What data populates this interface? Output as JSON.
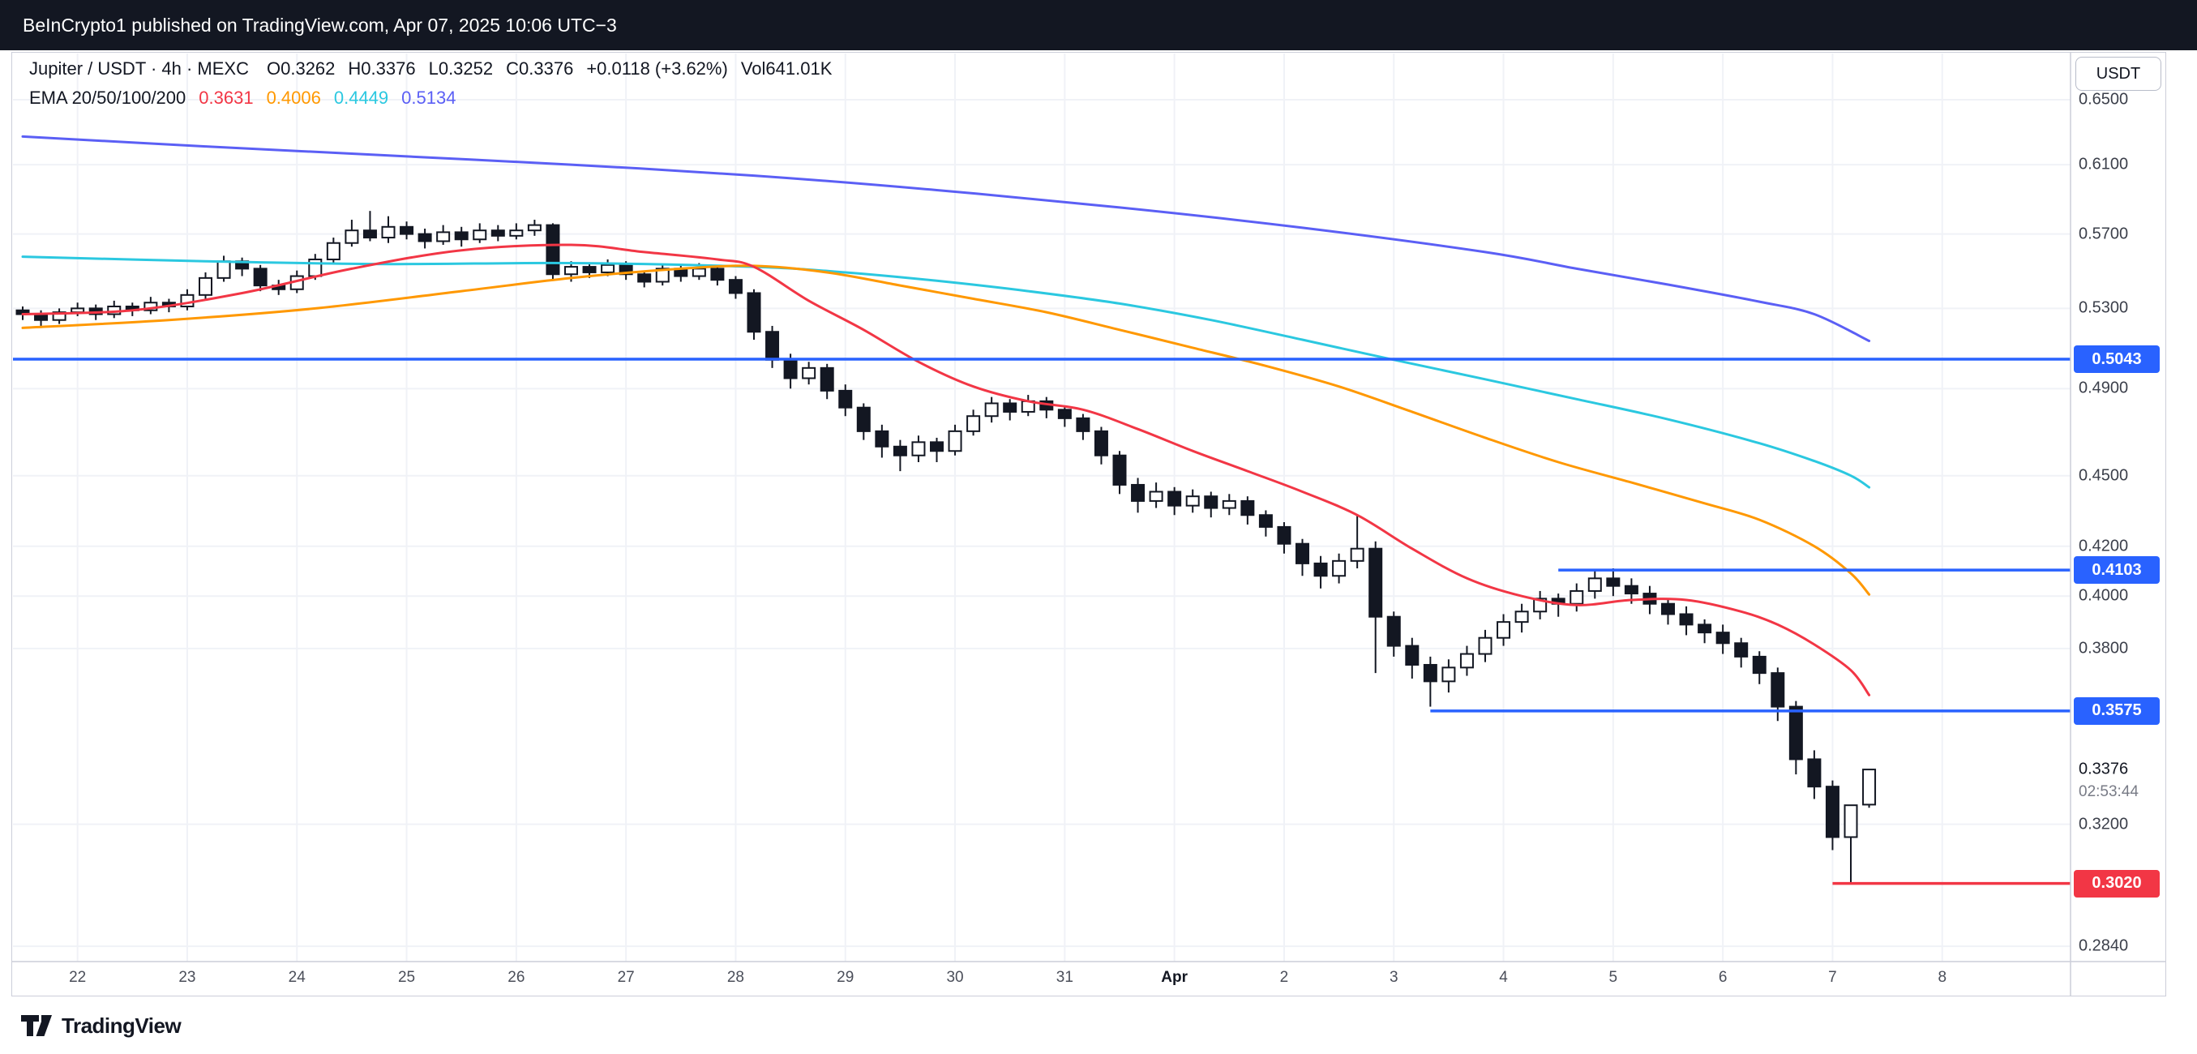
{
  "header": {
    "text": "BeInCrypto1 published on TradingView.com, Apr 07, 2025 10:06 UTC−3"
  },
  "toolbar": {
    "currency_button": "USDT"
  },
  "legend": {
    "symbol": "Jupiter / USDT · 4h · MEXC",
    "ohlc": [
      "O0.3262",
      "H0.3376",
      "L0.3252",
      "C0.3376"
    ],
    "change": "+0.0118 (+3.62%)",
    "volume_label": "Vol",
    "volume_value": "641.01K",
    "ema_label": "EMA 20/50/100/200",
    "ema_values": [
      "0.3631",
      "0.4006",
      "0.4449",
      "0.5134"
    ]
  },
  "footer": {
    "brand": "TradingView"
  },
  "chart_data": {
    "type": "candlestick",
    "symbol": "Jupiter / USDT",
    "interval": "4h",
    "exchange": "MEXC",
    "price_scale": "log",
    "current_price": {
      "text": "0.3376",
      "price": 0.3376,
      "countdown": "02:53:44"
    },
    "candle_up_color": "#ffffff",
    "candle_down_color": "#131722",
    "candle_border_color": "#131722",
    "candles": [
      [
        0.529,
        0.531,
        0.524,
        0.527
      ],
      [
        0.527,
        0.529,
        0.521,
        0.524
      ],
      [
        0.524,
        0.53,
        0.522,
        0.528
      ],
      [
        0.528,
        0.533,
        0.526,
        0.53
      ],
      [
        0.53,
        0.532,
        0.524,
        0.527
      ],
      [
        0.527,
        0.534,
        0.525,
        0.531
      ],
      [
        0.531,
        0.533,
        0.526,
        0.529
      ],
      [
        0.529,
        0.536,
        0.527,
        0.533
      ],
      [
        0.533,
        0.535,
        0.528,
        0.531
      ],
      [
        0.531,
        0.54,
        0.529,
        0.537
      ],
      [
        0.537,
        0.549,
        0.535,
        0.546
      ],
      [
        0.546,
        0.558,
        0.544,
        0.555
      ],
      [
        0.555,
        0.557,
        0.547,
        0.551
      ],
      [
        0.551,
        0.553,
        0.539,
        0.542
      ],
      [
        0.542,
        0.545,
        0.537,
        0.54
      ],
      [
        0.54,
        0.55,
        0.538,
        0.547
      ],
      [
        0.547,
        0.559,
        0.545,
        0.556
      ],
      [
        0.556,
        0.568,
        0.554,
        0.565
      ],
      [
        0.565,
        0.578,
        0.563,
        0.572
      ],
      [
        0.572,
        0.583,
        0.566,
        0.568
      ],
      [
        0.568,
        0.58,
        0.565,
        0.574
      ],
      [
        0.574,
        0.577,
        0.567,
        0.57
      ],
      [
        0.57,
        0.573,
        0.562,
        0.566
      ],
      [
        0.566,
        0.575,
        0.564,
        0.571
      ],
      [
        0.571,
        0.574,
        0.563,
        0.567
      ],
      [
        0.567,
        0.576,
        0.565,
        0.572
      ],
      [
        0.572,
        0.575,
        0.566,
        0.569
      ],
      [
        0.569,
        0.576,
        0.567,
        0.572
      ],
      [
        0.572,
        0.578,
        0.569,
        0.575
      ],
      [
        0.575,
        0.576,
        0.545,
        0.548
      ],
      [
        0.548,
        0.555,
        0.544,
        0.552
      ],
      [
        0.552,
        0.554,
        0.546,
        0.549
      ],
      [
        0.549,
        0.556,
        0.547,
        0.553
      ],
      [
        0.553,
        0.555,
        0.545,
        0.548
      ],
      [
        0.548,
        0.55,
        0.541,
        0.544
      ],
      [
        0.544,
        0.553,
        0.542,
        0.551
      ],
      [
        0.551,
        0.553,
        0.544,
        0.547
      ],
      [
        0.547,
        0.554,
        0.545,
        0.551
      ],
      [
        0.551,
        0.553,
        0.542,
        0.545
      ],
      [
        0.545,
        0.547,
        0.535,
        0.538
      ],
      [
        0.538,
        0.54,
        0.514,
        0.518
      ],
      [
        0.518,
        0.521,
        0.5,
        0.504
      ],
      [
        0.504,
        0.507,
        0.49,
        0.495
      ],
      [
        0.495,
        0.503,
        0.492,
        0.5
      ],
      [
        0.5,
        0.502,
        0.485,
        0.489
      ],
      [
        0.489,
        0.492,
        0.477,
        0.481
      ],
      [
        0.481,
        0.483,
        0.466,
        0.47
      ],
      [
        0.47,
        0.473,
        0.458,
        0.463
      ],
      [
        0.463,
        0.466,
        0.452,
        0.459
      ],
      [
        0.459,
        0.468,
        0.456,
        0.465
      ],
      [
        0.465,
        0.467,
        0.456,
        0.461
      ],
      [
        0.461,
        0.473,
        0.459,
        0.47
      ],
      [
        0.47,
        0.48,
        0.468,
        0.477
      ],
      [
        0.477,
        0.486,
        0.474,
        0.483
      ],
      [
        0.483,
        0.485,
        0.475,
        0.479
      ],
      [
        0.479,
        0.487,
        0.477,
        0.484
      ],
      [
        0.484,
        0.486,
        0.476,
        0.48
      ],
      [
        0.48,
        0.482,
        0.472,
        0.476
      ],
      [
        0.476,
        0.478,
        0.466,
        0.47
      ],
      [
        0.47,
        0.472,
        0.455,
        0.459
      ],
      [
        0.459,
        0.461,
        0.442,
        0.446
      ],
      [
        0.446,
        0.449,
        0.434,
        0.439
      ],
      [
        0.439,
        0.447,
        0.436,
        0.443
      ],
      [
        0.443,
        0.445,
        0.433,
        0.437
      ],
      [
        0.437,
        0.444,
        0.434,
        0.441
      ],
      [
        0.441,
        0.443,
        0.432,
        0.436
      ],
      [
        0.436,
        0.442,
        0.433,
        0.439
      ],
      [
        0.439,
        0.441,
        0.429,
        0.433
      ],
      [
        0.433,
        0.435,
        0.424,
        0.428
      ],
      [
        0.428,
        0.43,
        0.417,
        0.421
      ],
      [
        0.421,
        0.423,
        0.408,
        0.413
      ],
      [
        0.413,
        0.416,
        0.403,
        0.408
      ],
      [
        0.408,
        0.417,
        0.405,
        0.414
      ],
      [
        0.414,
        0.433,
        0.411,
        0.419
      ],
      [
        0.419,
        0.422,
        0.371,
        0.392
      ],
      [
        0.392,
        0.394,
        0.377,
        0.381
      ],
      [
        0.381,
        0.384,
        0.369,
        0.374
      ],
      [
        0.374,
        0.377,
        0.359,
        0.368
      ],
      [
        0.368,
        0.376,
        0.364,
        0.373
      ],
      [
        0.373,
        0.381,
        0.37,
        0.378
      ],
      [
        0.378,
        0.387,
        0.375,
        0.384
      ],
      [
        0.384,
        0.393,
        0.381,
        0.39
      ],
      [
        0.39,
        0.397,
        0.386,
        0.394
      ],
      [
        0.394,
        0.402,
        0.391,
        0.399
      ],
      [
        0.399,
        0.401,
        0.392,
        0.397
      ],
      [
        0.397,
        0.405,
        0.394,
        0.402
      ],
      [
        0.402,
        0.41,
        0.399,
        0.407
      ],
      [
        0.407,
        0.411,
        0.4,
        0.404
      ],
      [
        0.404,
        0.407,
        0.397,
        0.401
      ],
      [
        0.401,
        0.404,
        0.393,
        0.397
      ],
      [
        0.397,
        0.399,
        0.389,
        0.393
      ],
      [
        0.393,
        0.396,
        0.385,
        0.389
      ],
      [
        0.389,
        0.391,
        0.382,
        0.386
      ],
      [
        0.386,
        0.389,
        0.378,
        0.382
      ],
      [
        0.382,
        0.384,
        0.373,
        0.377
      ],
      [
        0.377,
        0.379,
        0.367,
        0.371
      ],
      [
        0.371,
        0.373,
        0.354,
        0.359
      ],
      [
        0.359,
        0.361,
        0.336,
        0.341
      ],
      [
        0.341,
        0.344,
        0.328,
        0.332
      ],
      [
        0.332,
        0.334,
        0.312,
        0.316
      ],
      [
        0.316,
        0.32,
        0.302,
        0.326
      ],
      [
        0.3262,
        0.3376,
        0.3252,
        0.3376
      ]
    ],
    "emas": [
      {
        "period": 20,
        "color": "#F23645",
        "value": 0.3631,
        "points": [
          [
            0,
            0.527
          ],
          [
            6,
            0.529
          ],
          [
            12,
            0.538
          ],
          [
            18,
            0.551
          ],
          [
            24,
            0.561
          ],
          [
            30,
            0.564
          ],
          [
            34,
            0.56
          ],
          [
            38,
            0.556
          ],
          [
            40,
            0.552
          ],
          [
            43,
            0.534
          ],
          [
            46,
            0.519
          ],
          [
            49,
            0.503
          ],
          [
            52,
            0.491
          ],
          [
            55,
            0.484
          ],
          [
            58,
            0.48
          ],
          [
            61,
            0.471
          ],
          [
            64,
            0.461
          ],
          [
            67,
            0.452
          ],
          [
            70,
            0.443
          ],
          [
            73,
            0.433
          ],
          [
            76,
            0.419
          ],
          [
            79,
            0.407
          ],
          [
            82,
            0.4
          ],
          [
            85,
            0.3965
          ],
          [
            88,
            0.3985
          ],
          [
            91,
            0.3985
          ],
          [
            94,
            0.394
          ],
          [
            96,
            0.389
          ],
          [
            98,
            0.3815
          ],
          [
            100,
            0.372
          ],
          [
            101,
            0.3631
          ]
        ]
      },
      {
        "period": 50,
        "color": "#FF9800",
        "value": 0.4006,
        "points": [
          [
            0,
            0.52
          ],
          [
            8,
            0.524
          ],
          [
            16,
            0.53
          ],
          [
            24,
            0.539
          ],
          [
            30,
            0.546
          ],
          [
            36,
            0.551
          ],
          [
            40,
            0.5525
          ],
          [
            44,
            0.549
          ],
          [
            48,
            0.542
          ],
          [
            52,
            0.535
          ],
          [
            56,
            0.528
          ],
          [
            60,
            0.519
          ],
          [
            64,
            0.51
          ],
          [
            68,
            0.501
          ],
          [
            72,
            0.491
          ],
          [
            76,
            0.479
          ],
          [
            80,
            0.467
          ],
          [
            84,
            0.456
          ],
          [
            88,
            0.447
          ],
          [
            92,
            0.438
          ],
          [
            95,
            0.431
          ],
          [
            98,
            0.42
          ],
          [
            100,
            0.409
          ],
          [
            101,
            0.4006
          ]
        ]
      },
      {
        "period": 100,
        "color": "#2BC8E0",
        "value": 0.4449,
        "points": [
          [
            0,
            0.5575
          ],
          [
            10,
            0.555
          ],
          [
            20,
            0.5535
          ],
          [
            30,
            0.554
          ],
          [
            40,
            0.552
          ],
          [
            45,
            0.549
          ],
          [
            50,
            0.5445
          ],
          [
            55,
            0.539
          ],
          [
            60,
            0.5325
          ],
          [
            65,
            0.524
          ],
          [
            70,
            0.514
          ],
          [
            75,
            0.504
          ],
          [
            80,
            0.4945
          ],
          [
            85,
            0.485
          ],
          [
            90,
            0.4755
          ],
          [
            95,
            0.4645
          ],
          [
            98,
            0.4565
          ],
          [
            100,
            0.45
          ],
          [
            101,
            0.4449
          ]
        ]
      },
      {
        "period": 200,
        "color": "#5B5FF5",
        "value": 0.5134,
        "points": [
          [
            0,
            0.627
          ],
          [
            10,
            0.621
          ],
          [
            20,
            0.6155
          ],
          [
            30,
            0.61
          ],
          [
            40,
            0.6035
          ],
          [
            50,
            0.595
          ],
          [
            60,
            0.585
          ],
          [
            70,
            0.5735
          ],
          [
            80,
            0.56
          ],
          [
            85,
            0.551
          ],
          [
            90,
            0.5425
          ],
          [
            95,
            0.5335
          ],
          [
            98,
            0.527
          ],
          [
            101,
            0.5134
          ]
        ]
      }
    ],
    "levels": [
      {
        "price": 0.5043,
        "label": "0.5043",
        "color": "#2962FF",
        "from_candle": null
      },
      {
        "price": 0.4103,
        "label": "0.4103",
        "color": "#2962FF",
        "from_candle": 84
      },
      {
        "price": 0.3575,
        "label": "0.3575",
        "color": "#2962FF",
        "from_candle": 77
      },
      {
        "price": 0.302,
        "label": "0.3020",
        "color": "#F23645",
        "from_candle": 99
      }
    ],
    "y_axis": {
      "range_top": 0.65,
      "range_bottom": 0.284,
      "labels": [
        {
          "text": "0.6500",
          "price": 0.65
        },
        {
          "text": "0.6100",
          "price": 0.61
        },
        {
          "text": "0.5700",
          "price": 0.57
        },
        {
          "text": "0.5300",
          "price": 0.53
        },
        {
          "text": "0.4900",
          "price": 0.49
        },
        {
          "text": "0.4500",
          "price": 0.45
        },
        {
          "text": "0.4200",
          "price": 0.42
        },
        {
          "text": "0.4000",
          "price": 0.4
        },
        {
          "text": "0.3800",
          "price": 0.38
        },
        {
          "text": "0.3200",
          "price": 0.32
        },
        {
          "text": "0.2840",
          "price": 0.284
        }
      ]
    },
    "x_axis": {
      "labels": [
        {
          "text": "22",
          "candle": 3
        },
        {
          "text": "23",
          "candle": 9
        },
        {
          "text": "24",
          "candle": 15
        },
        {
          "text": "25",
          "candle": 21
        },
        {
          "text": "26",
          "candle": 27
        },
        {
          "text": "27",
          "candle": 33
        },
        {
          "text": "28",
          "candle": 39
        },
        {
          "text": "29",
          "candle": 45
        },
        {
          "text": "30",
          "candle": 51
        },
        {
          "text": "31",
          "candle": 57
        },
        {
          "text": "Apr",
          "candle": 63,
          "bold": true
        },
        {
          "text": "2",
          "candle": 69
        },
        {
          "text": "3",
          "candle": 75
        },
        {
          "text": "4",
          "candle": 81
        },
        {
          "text": "5",
          "candle": 87
        },
        {
          "text": "6",
          "candle": 93
        },
        {
          "text": "7",
          "candle": 99
        },
        {
          "text": "8",
          "candle": 105
        }
      ]
    }
  }
}
